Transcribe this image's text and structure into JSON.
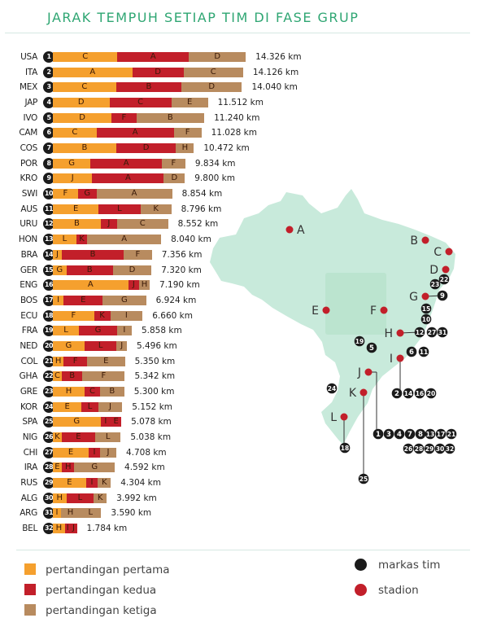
{
  "title": "JARAK TEMPUH SETIAP TIM DI FASE GRUP",
  "colors": {
    "match1": "#f5a02e",
    "match2": "#c21f2a",
    "match3": "#b88b5f",
    "map": "#c8eadb",
    "team_hq": "#1b1b1b",
    "stadium": "#c21f2a",
    "title": "#2fa673"
  },
  "legend": {
    "match1": "pertandingan pertama",
    "match2": "pertandingan kedua",
    "match3": "pertandingan ketiga",
    "team_hq": "markas tim",
    "stadium": "stadion"
  },
  "chart_data": {
    "type": "bar",
    "orientation": "horizontal",
    "stacked": true,
    "title": "JARAK TEMPUH SETIAP TIM DI FASE GRUP",
    "unit": "km",
    "series_names": [
      "pertandingan pertama",
      "pertandingan kedua",
      "pertandingan ketiga"
    ],
    "teams": [
      {
        "no": "1",
        "code": "USA",
        "total": "14.326 km",
        "segments": [
          [
            "C",
            4800,
            0
          ],
          [
            "A",
            5300,
            1
          ],
          [
            "D",
            4226,
            2
          ]
        ]
      },
      {
        "no": "2",
        "code": "ITA",
        "total": "14.126 km",
        "segments": [
          [
            "A",
            5900,
            0
          ],
          [
            "D",
            3800,
            1
          ],
          [
            "C",
            4426,
            2
          ]
        ]
      },
      {
        "no": "3",
        "code": "MEX",
        "total": "14.040 km",
        "segments": [
          [
            "C",
            4700,
            0
          ],
          [
            "B",
            4840,
            1
          ],
          [
            "D",
            4500,
            2
          ]
        ]
      },
      {
        "no": "4",
        "code": "JAP",
        "total": "11.512 km",
        "segments": [
          [
            "D",
            4200,
            0
          ],
          [
            "C",
            4600,
            1
          ],
          [
            "E",
            2712,
            2
          ]
        ]
      },
      {
        "no": "5",
        "code": "IVO",
        "total": "11.240 km",
        "segments": [
          [
            "D",
            4360,
            0
          ],
          [
            "F",
            1840,
            1
          ],
          [
            "B",
            5040,
            2
          ]
        ]
      },
      {
        "no": "6",
        "code": "CAM",
        "total": "11.028 km",
        "segments": [
          [
            "C",
            3240,
            0
          ],
          [
            "A",
            5740,
            1
          ],
          [
            "F",
            2048,
            2
          ]
        ]
      },
      {
        "no": "7",
        "code": "COS",
        "total": "10.472 km",
        "segments": [
          [
            "B",
            4700,
            0
          ],
          [
            "D",
            4440,
            1
          ],
          [
            "H",
            1332,
            2
          ]
        ]
      },
      {
        "no": "8",
        "code": "POR",
        "total": "9.834 km",
        "segments": [
          [
            "G",
            2800,
            0
          ],
          [
            "A",
            5300,
            1
          ],
          [
            "F",
            1734,
            2
          ]
        ]
      },
      {
        "no": "9",
        "code": "KRO",
        "total": "9.800 km",
        "segments": [
          [
            "J",
            2920,
            0
          ],
          [
            "A",
            5320,
            1
          ],
          [
            "D",
            1560,
            2
          ]
        ]
      },
      {
        "no": "10",
        "code": "SWI",
        "total": "8.854 km",
        "segments": [
          [
            "F",
            1860,
            0
          ],
          [
            "G",
            1380,
            1
          ],
          [
            "A",
            5614,
            2
          ]
        ]
      },
      {
        "no": "11",
        "code": "AUS",
        "total": "8.796 km",
        "segments": [
          [
            "E",
            3400,
            0
          ],
          [
            "L",
            3100,
            1
          ],
          [
            "K",
            2296,
            2
          ]
        ]
      },
      {
        "no": "12",
        "code": "URU",
        "total": "8.552 km",
        "segments": [
          [
            "B",
            3560,
            0
          ],
          [
            "J",
            1200,
            1
          ],
          [
            "C",
            3792,
            2
          ]
        ]
      },
      {
        "no": "13",
        "code": "HON",
        "total": "8.040 km",
        "segments": [
          [
            "L",
            1740,
            0
          ],
          [
            "K",
            820,
            1
          ],
          [
            "A",
            5480,
            2
          ]
        ]
      },
      {
        "no": "14",
        "code": "BRA",
        "total": "7.356 km",
        "segments": [
          [
            "J",
            660,
            0
          ],
          [
            "B",
            4600,
            1
          ],
          [
            "F",
            2096,
            2
          ]
        ]
      },
      {
        "no": "15",
        "code": "GER",
        "total": "7.320 km",
        "segments": [
          [
            "G",
            1000,
            0
          ],
          [
            "B",
            3460,
            1
          ],
          [
            "D",
            2860,
            2
          ]
        ]
      },
      {
        "no": "16",
        "code": "ENG",
        "total": "7.190 km",
        "segments": [
          [
            "A",
            5600,
            0
          ],
          [
            "J",
            800,
            1
          ],
          [
            "H",
            790,
            2
          ]
        ]
      },
      {
        "no": "17",
        "code": "BOS",
        "total": "6.924 km",
        "segments": [
          [
            "I",
            800,
            0
          ],
          [
            "E",
            2900,
            1
          ],
          [
            "G",
            3224,
            2
          ]
        ]
      },
      {
        "no": "18",
        "code": "ECU",
        "total": "6.660 km",
        "segments": [
          [
            "F",
            3060,
            0
          ],
          [
            "K",
            1200,
            1
          ],
          [
            "I",
            2400,
            2
          ]
        ]
      },
      {
        "no": "19",
        "code": "FRA",
        "total": "5.858 km",
        "segments": [
          [
            "L",
            1940,
            0
          ],
          [
            "G",
            2820,
            1
          ],
          [
            "I",
            1098,
            2
          ]
        ]
      },
      {
        "no": "20",
        "code": "NED",
        "total": "5.496 km",
        "segments": [
          [
            "G",
            2340,
            0
          ],
          [
            "L",
            2400,
            1
          ],
          [
            "J",
            756,
            2
          ]
        ]
      },
      {
        "no": "21",
        "code": "COL",
        "total": "5.350 km",
        "segments": [
          [
            "H",
            800,
            0
          ],
          [
            "F",
            1740,
            1
          ],
          [
            "E",
            2810,
            2
          ]
        ]
      },
      {
        "no": "22",
        "code": "GHA",
        "total": "5.342 km",
        "segments": [
          [
            "C",
            660,
            0
          ],
          [
            "B",
            1540,
            1
          ],
          [
            "F",
            3142,
            2
          ]
        ]
      },
      {
        "no": "23",
        "code": "GRE",
        "total": "5.300 km",
        "segments": [
          [
            "H",
            2360,
            0
          ],
          [
            "C",
            1140,
            1
          ],
          [
            "B",
            1800,
            2
          ]
        ]
      },
      {
        "no": "24",
        "code": "KOR",
        "total": "5.152 km",
        "segments": [
          [
            "E",
            2140,
            0
          ],
          [
            "L",
            1220,
            1
          ],
          [
            "J",
            1792,
            2
          ]
        ]
      },
      {
        "no": "25",
        "code": "SPA",
        "total": "5.078 km",
        "segments": [
          [
            "G",
            3540,
            0
          ],
          [
            "I",
            760,
            1
          ],
          [
            "E",
            778,
            1
          ]
        ]
      },
      {
        "no": "26",
        "code": "NIG",
        "total": "5.038 km",
        "segments": [
          [
            "K",
            660,
            0
          ],
          [
            "E",
            2480,
            1
          ],
          [
            "L",
            1898,
            2
          ]
        ]
      },
      {
        "no": "27",
        "code": "CHI",
        "total": "4.708 km",
        "segments": [
          [
            "E",
            2660,
            0
          ],
          [
            "I",
            840,
            1
          ],
          [
            "J",
            1208,
            2
          ]
        ]
      },
      {
        "no": "28",
        "code": "IRA",
        "total": "4.592 km",
        "segments": [
          [
            "E",
            660,
            0
          ],
          [
            "H",
            940,
            1
          ],
          [
            "G",
            2992,
            2
          ]
        ]
      },
      {
        "no": "29",
        "code": "RUS",
        "total": "4.304 km",
        "segments": [
          [
            "E",
            2460,
            0
          ],
          [
            "I",
            880,
            1
          ],
          [
            "K",
            964,
            2
          ]
        ]
      },
      {
        "no": "30",
        "code": "ALG",
        "total": "3.992 km",
        "segments": [
          [
            "H",
            1000,
            0
          ],
          [
            "L",
            2040,
            1
          ],
          [
            "K",
            952,
            2
          ]
        ]
      },
      {
        "no": "31",
        "code": "ARG",
        "total": "3.590 km",
        "segments": [
          [
            "I",
            600,
            0
          ],
          [
            "H",
            1400,
            2
          ],
          [
            "L",
            1590,
            2
          ]
        ]
      },
      {
        "no": "32",
        "code": "BEL",
        "total": "1.784 km",
        "segments": [
          [
            "H",
            900,
            0
          ],
          [
            "I",
            400,
            1
          ],
          [
            "J",
            484,
            1
          ]
        ]
      }
    ]
  },
  "map": {
    "stadiums": [
      "A",
      "B",
      "C",
      "D",
      "E",
      "F",
      "G",
      "H",
      "I",
      "J",
      "K",
      "L"
    ],
    "team_markers": [
      "1",
      "2",
      "3",
      "4",
      "5",
      "6",
      "7",
      "8",
      "9",
      "10",
      "11",
      "12",
      "13",
      "14",
      "15",
      "16",
      "17",
      "18",
      "19",
      "20",
      "21",
      "22",
      "23",
      "24",
      "25",
      "26",
      "27",
      "28",
      "29",
      "30",
      "31",
      "32"
    ]
  }
}
